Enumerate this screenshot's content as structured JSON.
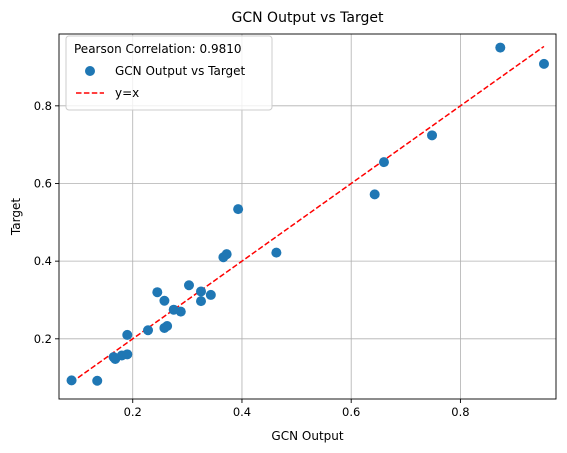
{
  "chart_data": {
    "type": "scatter",
    "title": "GCN Output vs Target",
    "xlabel": "GCN Output",
    "ylabel": "Target",
    "xlim": [
      0.065,
      0.975
    ],
    "ylim": [
      0.045,
      0.985
    ],
    "xticks": [
      0.2,
      0.4,
      0.6,
      0.8
    ],
    "yticks": [
      0.2,
      0.4,
      0.6,
      0.8
    ],
    "xtick_labels": [
      "0.2",
      "0.4",
      "0.6",
      "0.8"
    ],
    "ytick_labels": [
      "0.2",
      "0.4",
      "0.6",
      "0.8"
    ],
    "grid": true,
    "legend": {
      "placement": "top-left",
      "title": "Pearson Correlation: 0.9810",
      "entries": [
        "GCN Output vs Target",
        "y=x"
      ]
    },
    "series": [
      {
        "name": "GCN Output vs Target",
        "kind": "scatter",
        "color": "#1f77b4",
        "points": [
          [
            0.088,
            0.093
          ],
          [
            0.135,
            0.092
          ],
          [
            0.165,
            0.153
          ],
          [
            0.168,
            0.148
          ],
          [
            0.18,
            0.157
          ],
          [
            0.19,
            0.16
          ],
          [
            0.19,
            0.21
          ],
          [
            0.228,
            0.222
          ],
          [
            0.245,
            0.32
          ],
          [
            0.258,
            0.298
          ],
          [
            0.258,
            0.228
          ],
          [
            0.263,
            0.233
          ],
          [
            0.275,
            0.275
          ],
          [
            0.288,
            0.27
          ],
          [
            0.303,
            0.338
          ],
          [
            0.325,
            0.322
          ],
          [
            0.325,
            0.297
          ],
          [
            0.343,
            0.313
          ],
          [
            0.366,
            0.41
          ],
          [
            0.372,
            0.418
          ],
          [
            0.393,
            0.534
          ],
          [
            0.463,
            0.422
          ],
          [
            0.643,
            0.572
          ],
          [
            0.66,
            0.655
          ],
          [
            0.748,
            0.724
          ],
          [
            0.873,
            0.95
          ],
          [
            0.953,
            0.908
          ]
        ]
      },
      {
        "name": "y=x",
        "kind": "line",
        "style": "dashed",
        "color": "#ff0000",
        "points": [
          [
            0.088,
            0.088
          ],
          [
            0.953,
            0.953
          ]
        ]
      }
    ]
  }
}
